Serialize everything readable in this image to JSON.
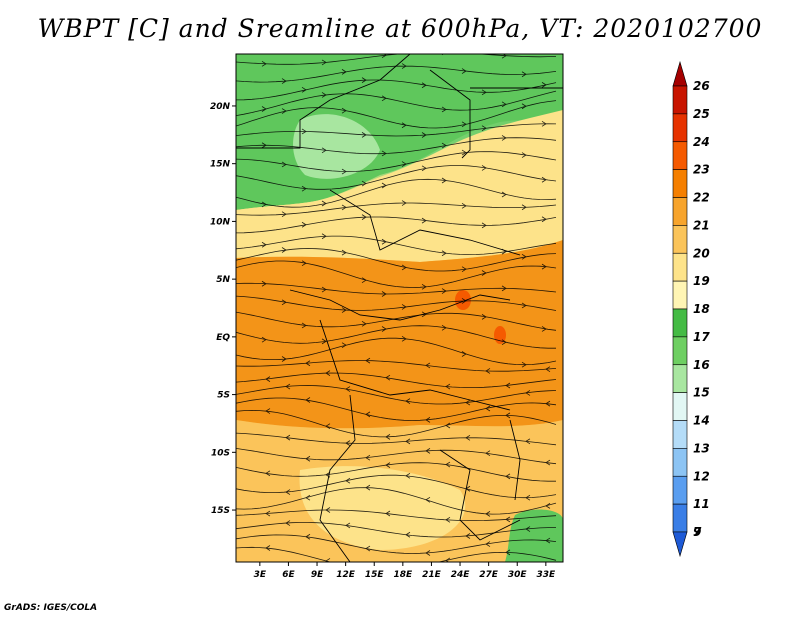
{
  "title": "WBPT [C] and Sreamline at 600hPa, VT: 2020102700",
  "credit": "GrADS: IGES/COLA",
  "map": {
    "lat_labels": [
      "20N",
      "15N",
      "10N",
      "5N",
      "EQ",
      "5S",
      "10S",
      "15S"
    ],
    "lat_values": [
      20,
      15,
      10,
      5,
      0,
      -5,
      -10,
      -15
    ],
    "lon_labels": [
      "3E",
      "6E",
      "9E",
      "12E",
      "15E",
      "18E",
      "21E",
      "24E",
      "27E",
      "30E",
      "33E"
    ],
    "lon_values": [
      3,
      6,
      9,
      12,
      15,
      18,
      21,
      24,
      27,
      30,
      33
    ],
    "lat_range": [
      -19.5,
      24.5
    ],
    "lon_range": [
      0.5,
      34.8
    ]
  },
  "colorbar": {
    "labels": [
      "26",
      "25",
      "24",
      "23",
      "22",
      "21",
      "20",
      "19",
      "18",
      "17",
      "16",
      "15",
      "14",
      "13",
      "12",
      "11",
      "9",
      "7"
    ],
    "colors": [
      "#a50000",
      "#c81400",
      "#e63200",
      "#f55a00",
      "#f57f00",
      "#f7a42c",
      "#fbc45a",
      "#fde38a",
      "#fff5b4",
      "#44bb44",
      "#6ecf62",
      "#a8e6a0",
      "#e2f7f4",
      "#b4dcf8",
      "#8cc4f4",
      "#5a9ef0",
      "#3a7ee6",
      "#1e5ad6"
    ]
  }
}
